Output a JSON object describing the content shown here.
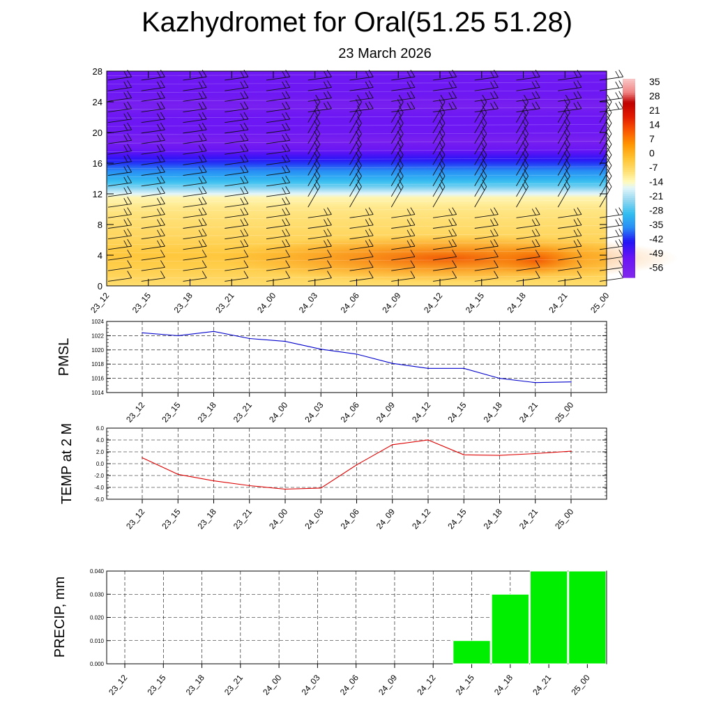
{
  "title": "Kazhydromet for Oral(51.25 51.28)",
  "subtitle": "23 March 2026",
  "times": [
    "23_12",
    "23_15",
    "23_18",
    "23_21",
    "24_00",
    "24_03",
    "24_06",
    "24_09",
    "24_12",
    "24_15",
    "24_18",
    "24_21",
    "25_00"
  ],
  "colors": {
    "pmsl_line": "#0000cc",
    "temp_line": "#dd0000",
    "precip_bar": "#00ee00"
  },
  "chart_data": [
    {
      "type": "heatmap",
      "name": "cross-section",
      "y_ticks": [
        0,
        4,
        8,
        12,
        16,
        20,
        24,
        28
      ],
      "ylim": [
        0,
        28
      ],
      "x": [
        "23_12",
        "23_15",
        "23_18",
        "23_21",
        "24_00",
        "24_03",
        "24_06",
        "24_09",
        "24_12",
        "24_15",
        "24_18",
        "24_21",
        "25_00"
      ],
      "colorbar_labels": [
        "35",
        "28",
        "21",
        "14",
        "7",
        "0",
        "-7",
        "-14",
        "-21",
        "-28",
        "-35",
        "-42",
        "-49",
        "-56"
      ],
      "colorbar_range": [
        -60,
        40
      ],
      "wind_barbs": true
    },
    {
      "type": "line",
      "name": "pmsl",
      "ylabel": "PMSL",
      "x": [
        "23_12",
        "23_15",
        "23_18",
        "23_21",
        "24_00",
        "24_03",
        "24_06",
        "24_09",
        "24_12",
        "24_15",
        "24_18",
        "24_21",
        "25_00"
      ],
      "values": [
        1022.4,
        1022.0,
        1022.6,
        1021.6,
        1021.2,
        1020.1,
        1019.4,
        1018.1,
        1017.4,
        1017.4,
        1016.0,
        1015.4,
        1015.5
      ],
      "ylim": [
        1014,
        1024
      ],
      "y_ticks": [
        "1014",
        "1016",
        "1018",
        "1020",
        "1022",
        "1024"
      ],
      "grid": true
    },
    {
      "type": "line",
      "name": "temp",
      "ylabel": "TEMP at 2 M",
      "x": [
        "23_12",
        "23_15",
        "23_18",
        "23_21",
        "24_00",
        "24_03",
        "24_06",
        "24_09",
        "24_12",
        "24_15",
        "24_18",
        "24_21",
        "25_00"
      ],
      "values": [
        1.0,
        -1.8,
        -2.9,
        -3.7,
        -4.3,
        -4.1,
        -0.2,
        3.2,
        4.0,
        1.5,
        1.4,
        1.7,
        2.1
      ],
      "ylim": [
        -6,
        6
      ],
      "y_ticks": [
        "-6.0",
        "-4.0",
        "-2.0",
        "0.0",
        "2.0",
        "4.0",
        "6.0"
      ],
      "grid": true
    },
    {
      "type": "bar",
      "name": "precip",
      "ylabel": "PRECIP, mm",
      "x": [
        "23_12",
        "23_15",
        "23_18",
        "23_21",
        "24_00",
        "24_03",
        "24_06",
        "24_09",
        "24_12",
        "24_15",
        "24_18",
        "24_21",
        "25_00"
      ],
      "values": [
        0,
        0,
        0,
        0,
        0,
        0,
        0,
        0,
        0,
        0.01,
        0.03,
        0.04,
        0.04
      ],
      "ylim": [
        0,
        0.04
      ],
      "y_ticks": [
        "0.000",
        "0.010",
        "0.020",
        "0.030",
        "0.040"
      ],
      "grid": true
    }
  ]
}
